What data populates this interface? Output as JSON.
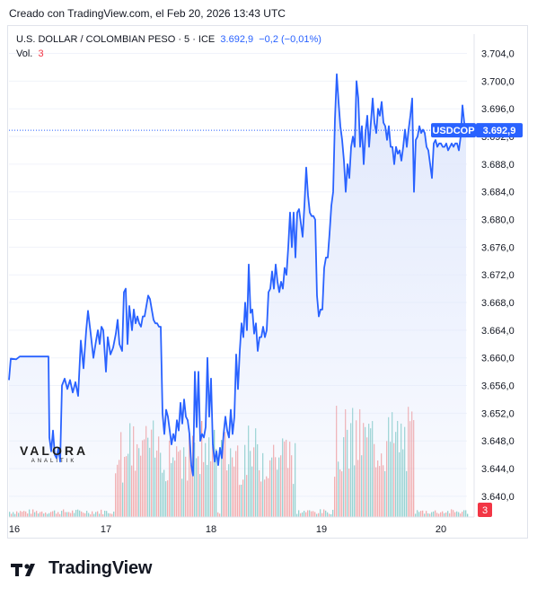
{
  "header": {
    "caption": "Creado con TradingView.com, el Feb 20, 2026 13:43 UTC"
  },
  "legend": {
    "symbol": "U.S. DOLLAR / COLOMBIAN PESO · 5 · ICE",
    "price": "3.692,9",
    "change": "−0,2 (−0,01%)",
    "vol_label": "Vol.",
    "vol_value": "3"
  },
  "footer": {
    "brand": "TradingView"
  },
  "watermark": {
    "name": "VALORA",
    "sub": "ANALITIK"
  },
  "colors": {
    "line": "#2962ff",
    "area": "#dfe7fc",
    "vol_up": "#26a69a",
    "vol_down": "#ef5350",
    "label_bg": "#2962ff",
    "vol_tag": "#f23645",
    "grid": "#f0f3fa",
    "text": "#131722"
  },
  "chart_data": {
    "type": "area",
    "symbol_tag": "USDCOP",
    "last_price": 3692.9,
    "last_price_label": "3.692,9",
    "last_volume_label": "3",
    "ylim": [
      3637,
      3705.5
    ],
    "yticks": [
      3640,
      3644,
      3648,
      3652,
      3656,
      3660,
      3664,
      3668,
      3672,
      3676,
      3680,
      3684,
      3688,
      3692,
      3696,
      3700,
      3704
    ],
    "ytick_labels": [
      "3.640,0",
      "3.644,0",
      "3.648,0",
      "3.652,0",
      "3.656,0",
      "3.660,0",
      "3.664,0",
      "3.668,0",
      "3.672,0",
      "3.676,0",
      "3.680,0",
      "3.684,0",
      "3.688,0",
      "3.692,0",
      "3.696,0",
      "3.700,0",
      "3.704,0"
    ],
    "xlim": [
      0,
      510
    ],
    "xticks": [
      {
        "label": "16",
        "x": 6
      },
      {
        "label": "17",
        "x": 108
      },
      {
        "label": "18",
        "x": 225
      },
      {
        "label": "19",
        "x": 348
      },
      {
        "label": "20",
        "x": 481
      }
    ],
    "price_series": [
      [
        0,
        3656.8
      ],
      [
        2,
        3659.9
      ],
      [
        8,
        3659.8
      ],
      [
        12,
        3660.2
      ],
      [
        30,
        3660.2
      ],
      [
        44,
        3660.2
      ],
      [
        45,
        3648.5
      ],
      [
        47,
        3646.5
      ],
      [
        49,
        3649.5
      ],
      [
        51,
        3646.0
      ],
      [
        53,
        3645.5
      ],
      [
        55,
        3647.0
      ],
      [
        57,
        3645.0
      ],
      [
        59,
        3656.0
      ],
      [
        62,
        3657.0
      ],
      [
        65,
        3655.5
      ],
      [
        68,
        3656.8
      ],
      [
        71,
        3655.0
      ],
      [
        74,
        3656.5
      ],
      [
        77,
        3654.5
      ],
      [
        80,
        3662.5
      ],
      [
        83,
        3658.5
      ],
      [
        86,
        3664.0
      ],
      [
        88,
        3666.8
      ],
      [
        91,
        3663.5
      ],
      [
        94,
        3660.0
      ],
      [
        97,
        3662.5
      ],
      [
        99,
        3664.0
      ],
      [
        101,
        3662.0
      ],
      [
        103,
        3664.5
      ],
      [
        105,
        3664.0
      ],
      [
        108,
        3658.0
      ],
      [
        110,
        3663.0
      ],
      [
        113,
        3660.5
      ],
      [
        116,
        3661.5
      ],
      [
        119,
        3663.5
      ],
      [
        121,
        3665.5
      ],
      [
        123,
        3662.0
      ],
      [
        126,
        3661.0
      ],
      [
        128,
        3669.5
      ],
      [
        130,
        3670.0
      ],
      [
        132,
        3662.0
      ],
      [
        134,
        3667.5
      ],
      [
        137,
        3664.0
      ],
      [
        139,
        3667.0
      ],
      [
        141,
        3665.0
      ],
      [
        143,
        3666.0
      ],
      [
        145,
        3665.0
      ],
      [
        147,
        3664.5
      ],
      [
        149,
        3666.0
      ],
      [
        151,
        3666.0
      ],
      [
        153,
        3667.5
      ],
      [
        155,
        3669.0
      ],
      [
        157,
        3668.5
      ],
      [
        159,
        3667.0
      ],
      [
        161,
        3665.5
      ],
      [
        163,
        3665.0
      ],
      [
        165,
        3665.0
      ],
      [
        167,
        3664.5
      ],
      [
        169,
        3664.5
      ],
      [
        171,
        3652.0
      ],
      [
        173,
        3649.0
      ],
      [
        175,
        3652.5
      ],
      [
        177,
        3651.5
      ],
      [
        179,
        3649.5
      ],
      [
        181,
        3647.5
      ],
      [
        183,
        3649.0
      ],
      [
        185,
        3648.0
      ],
      [
        187,
        3651.0
      ],
      [
        189,
        3649.5
      ],
      [
        191,
        3653.5
      ],
      [
        193,
        3650.5
      ],
      [
        195,
        3654.0
      ],
      [
        197,
        3651.5
      ],
      [
        199,
        3651.0
      ],
      [
        201,
        3649.0
      ],
      [
        203,
        3644.5
      ],
      [
        205,
        3643.0
      ],
      [
        207,
        3658.0
      ],
      [
        209,
        3650.0
      ],
      [
        211,
        3658.0
      ],
      [
        213,
        3648.0
      ],
      [
        215,
        3649.0
      ],
      [
        217,
        3648.5
      ],
      [
        219,
        3650.0
      ],
      [
        221,
        3660.0
      ],
      [
        223,
        3651.5
      ],
      [
        225,
        3657.0
      ],
      [
        227,
        3647.5
      ],
      [
        229,
        3645.0
      ],
      [
        231,
        3646.5
      ],
      [
        233,
        3644.5
      ],
      [
        235,
        3647.0
      ],
      [
        237,
        3645.5
      ],
      [
        239,
        3649.0
      ],
      [
        241,
        3651.5
      ],
      [
        243,
        3649.5
      ],
      [
        245,
        3648.5
      ],
      [
        247,
        3652.5
      ],
      [
        249,
        3649.0
      ],
      [
        251,
        3651.5
      ],
      [
        253,
        3660.5
      ],
      [
        255,
        3655.5
      ],
      [
        257,
        3661.0
      ],
      [
        259,
        3665.0
      ],
      [
        261,
        3663.0
      ],
      [
        263,
        3668.0
      ],
      [
        265,
        3664.0
      ],
      [
        267,
        3673.5
      ],
      [
        269,
        3666.5
      ],
      [
        271,
        3667.0
      ],
      [
        273,
        3663.5
      ],
      [
        275,
        3665.0
      ],
      [
        277,
        3661.0
      ],
      [
        279,
        3663.0
      ],
      [
        281,
        3663.0
      ],
      [
        283,
        3664.5
      ],
      [
        285,
        3663.0
      ],
      [
        287,
        3664.0
      ],
      [
        289,
        3669.5
      ],
      [
        291,
        3670.0
      ],
      [
        293,
        3672.5
      ],
      [
        295,
        3670.0
      ],
      [
        297,
        3673.5
      ],
      [
        299,
        3671.0
      ],
      [
        301,
        3669.5
      ],
      [
        303,
        3671.0
      ],
      [
        305,
        3670.0
      ],
      [
        307,
        3673.0
      ],
      [
        309,
        3672.0
      ],
      [
        311,
        3676.0
      ],
      [
        313,
        3681.0
      ],
      [
        315,
        3676.0
      ],
      [
        317,
        3681.0
      ],
      [
        319,
        3674.5
      ],
      [
        321,
        3681.0
      ],
      [
        323,
        3681.5
      ],
      [
        325,
        3679.5
      ],
      [
        327,
        3677.5
      ],
      [
        329,
        3682.0
      ],
      [
        331,
        3687.5
      ],
      [
        333,
        3683.5
      ],
      [
        335,
        3681.0
      ],
      [
        337,
        3680.5
      ],
      [
        339,
        3680.5
      ],
      [
        341,
        3680.0
      ],
      [
        343,
        3669.0
      ],
      [
        345,
        3666.0
      ],
      [
        347,
        3667.0
      ],
      [
        349,
        3667.0
      ],
      [
        351,
        3673.0
      ],
      [
        353,
        3674.5
      ],
      [
        355,
        3674.5
      ],
      [
        357,
        3678.0
      ],
      [
        359,
        3682.0
      ],
      [
        361,
        3684.0
      ],
      [
        363,
        3694.5
      ],
      [
        365,
        3701.0
      ],
      [
        367,
        3697.0
      ],
      [
        369,
        3693.5
      ],
      [
        371,
        3691.5
      ],
      [
        373,
        3688.5
      ],
      [
        375,
        3684.0
      ],
      [
        377,
        3688.0
      ],
      [
        379,
        3686.0
      ],
      [
        381,
        3690.5
      ],
      [
        383,
        3692.0
      ],
      [
        385,
        3690.5
      ],
      [
        387,
        3700.0
      ],
      [
        389,
        3697.5
      ],
      [
        391,
        3690.5
      ],
      [
        393,
        3693.5
      ],
      [
        395,
        3688.0
      ],
      [
        397,
        3692.5
      ],
      [
        399,
        3695.0
      ],
      [
        401,
        3690.5
      ],
      [
        403,
        3694.0
      ],
      [
        405,
        3697.5
      ],
      [
        407,
        3694.0
      ],
      [
        409,
        3692.5
      ],
      [
        411,
        3696.0
      ],
      [
        413,
        3695.0
      ],
      [
        415,
        3697.0
      ],
      [
        417,
        3694.0
      ],
      [
        419,
        3693.5
      ],
      [
        421,
        3691.5
      ],
      [
        423,
        3693.5
      ],
      [
        425,
        3690.5
      ],
      [
        427,
        3690.5
      ],
      [
        429,
        3688.0
      ],
      [
        431,
        3690.5
      ],
      [
        433,
        3689.5
      ],
      [
        435,
        3690.0
      ],
      [
        437,
        3688.5
      ],
      [
        439,
        3690.5
      ],
      [
        441,
        3693.0
      ],
      [
        443,
        3690.5
      ],
      [
        445,
        3693.0
      ],
      [
        447,
        3695.0
      ],
      [
        449,
        3697.5
      ],
      [
        451,
        3684.0
      ],
      [
        453,
        3691.5
      ],
      [
        455,
        3692.0
      ],
      [
        457,
        3693.5
      ],
      [
        459,
        3692.5
      ],
      [
        461,
        3693.0
      ],
      [
        463,
        3692.5
      ],
      [
        465,
        3690.5
      ],
      [
        467,
        3690.0
      ],
      [
        469,
        3688.0
      ],
      [
        471,
        3686.0
      ],
      [
        473,
        3691.0
      ],
      [
        475,
        3691.5
      ],
      [
        477,
        3690.5
      ],
      [
        479,
        3691.0
      ],
      [
        481,
        3691.0
      ],
      [
        483,
        3690.5
      ],
      [
        485,
        3690.5
      ],
      [
        487,
        3691.0
      ],
      [
        489,
        3690.0
      ],
      [
        491,
        3690.5
      ],
      [
        493,
        3691.0
      ],
      [
        495,
        3690.5
      ],
      [
        497,
        3691.0
      ],
      [
        499,
        3691.0
      ],
      [
        501,
        3690.0
      ],
      [
        503,
        3692.0
      ],
      [
        505,
        3696.5
      ],
      [
        507,
        3694.0
      ],
      [
        509,
        3692.9
      ]
    ],
    "volume_bursts": [
      {
        "x_from": 118,
        "x_to": 230,
        "peak": 0.75
      },
      {
        "x_from": 236,
        "x_to": 318,
        "peak": 0.7
      },
      {
        "x_from": 362,
        "x_to": 450,
        "peak": 0.85
      }
    ],
    "volume_base": 0.04
  }
}
